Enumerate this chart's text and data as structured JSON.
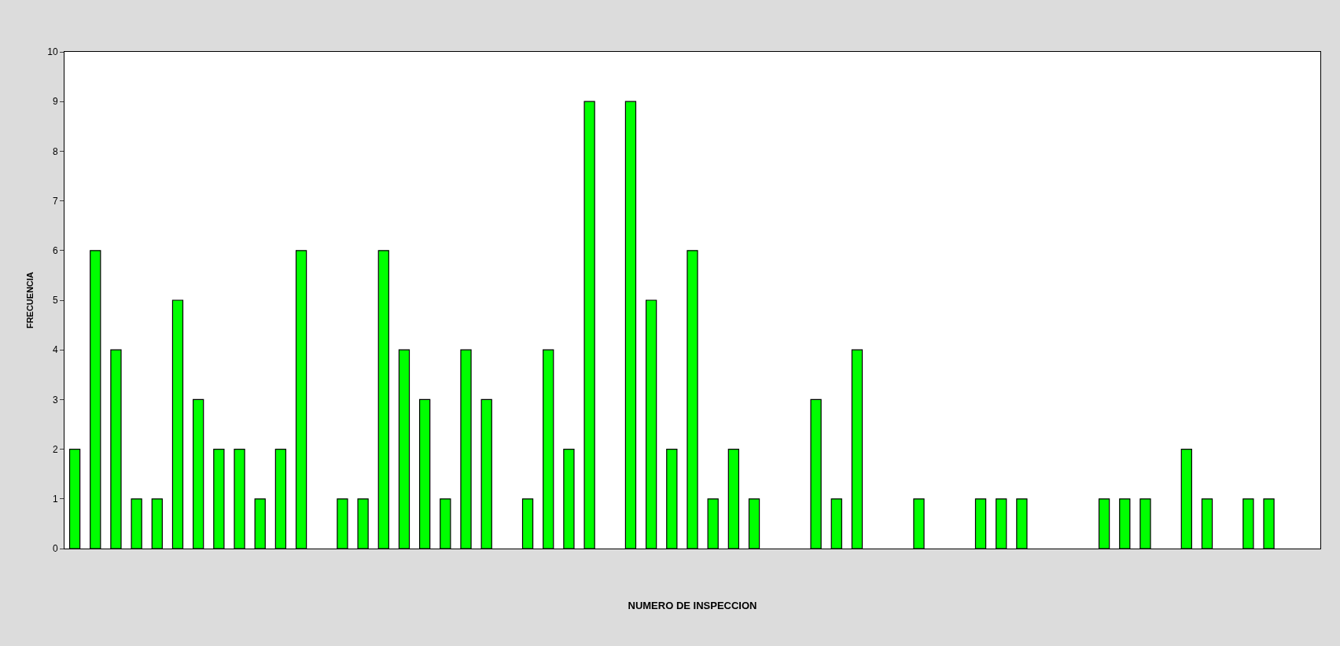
{
  "chart_data": {
    "type": "bar",
    "xlabel": "NUMERO DE INSPECCION",
    "ylabel": "FRECUENCIA",
    "categories": [
      null,
      null,
      null,
      null,
      null,
      null,
      null,
      null,
      null,
      null,
      null,
      null,
      null,
      null,
      null,
      null,
      null,
      null,
      null,
      null,
      null,
      null,
      null,
      null,
      null,
      null,
      null,
      null,
      null,
      null,
      null,
      null,
      null,
      null,
      null,
      null,
      null,
      null,
      null,
      null,
      null,
      null,
      null,
      null,
      null,
      null,
      null,
      null,
      null,
      null,
      null,
      null,
      null,
      null,
      null,
      null,
      null,
      null,
      null,
      null,
      null
    ],
    "values": [
      2,
      6,
      4,
      1,
      1,
      5,
      3,
      2,
      2,
      1,
      2,
      6,
      0,
      1,
      1,
      6,
      4,
      3,
      1,
      4,
      3,
      0,
      1,
      4,
      2,
      9,
      0,
      9,
      5,
      2,
      6,
      1,
      2,
      1,
      0,
      0,
      3,
      1,
      4,
      0,
      0,
      1,
      0,
      0,
      1,
      1,
      1,
      0,
      0,
      0,
      1,
      1,
      1,
      0,
      2,
      1,
      0,
      1,
      1,
      0,
      0
    ],
    "color": "#00ff00",
    "ylim": [
      0,
      10
    ],
    "yticks": [
      0,
      1,
      2,
      3,
      4,
      5,
      6,
      7,
      8,
      9,
      10
    ]
  }
}
